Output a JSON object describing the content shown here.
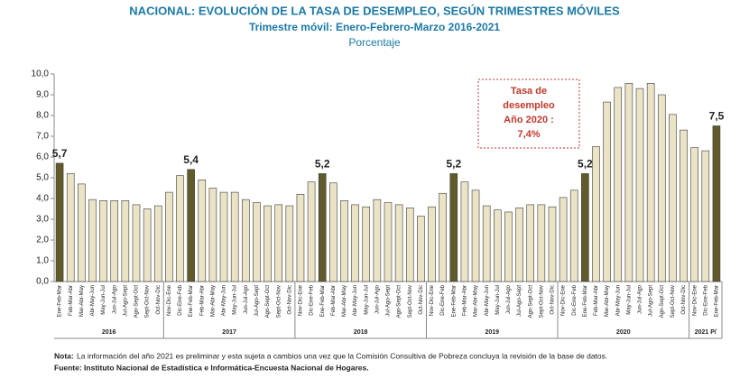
{
  "chart_data": {
    "type": "bar",
    "title": "NACIONAL:  EVOLUCIÓN DE LA TASA DE DESEMPLEO, SEGÚN TRIMESTRES MÓVILES",
    "subtitle": "Trimestre  móvil:  Enero-Febrero-Marzo 2016-2021",
    "y_label": "Porcentaje",
    "color": "#ebe3c6",
    "highlight_color": "#615b2c",
    "ylim": [
      0,
      10
    ],
    "yticks": [
      {
        "value": 0,
        "label": "0,0"
      },
      {
        "value": 1,
        "label": "1,0"
      },
      {
        "value": 2,
        "label": "2,0"
      },
      {
        "value": 3,
        "label": "3,0"
      },
      {
        "value": 4,
        "label": "4,0"
      },
      {
        "value": 5,
        "label": "5,0"
      },
      {
        "value": 6,
        "label": "6,0"
      },
      {
        "value": 7,
        "label": "7,0"
      },
      {
        "value": 8,
        "label": "8,0"
      },
      {
        "value": 9,
        "label": "9,0"
      },
      {
        "value": 10,
        "label": "10,0"
      }
    ],
    "grid": false,
    "groups": [
      {
        "name": "2016",
        "categories": [
          "Ene-Feb-Mar",
          "Feb-Mar-Abr",
          "Mar-Abr-May",
          "Abr-May-Jun",
          "May-Jun-Jul",
          "Jun-Jul-Ago",
          "Jul-Ago-Sept",
          "Ago-Sept-Oct",
          "Sept-Oct-Nov",
          "Oct-Nov-Dic"
        ],
        "values": [
          5.7,
          5.2,
          4.7,
          3.95,
          3.9,
          3.9,
          3.9,
          3.7,
          3.5,
          3.65
        ],
        "value_labels": [
          "5,7",
          null,
          null,
          null,
          null,
          null,
          null,
          null,
          null,
          null
        ]
      },
      {
        "name": "2017",
        "categories": [
          "Nov-Dic-Ene",
          "Dic-Ene-Feb",
          "Ene-Feb-Mar",
          "Feb-Mar-Abr",
          "Mar-Abr-May",
          "Abr-May-Jun",
          "May-Jun-Jul",
          "Jun-Jul-Ago",
          "Jul-Ago-Sept",
          "Ago-Sept-Oct",
          "Sept-Oct-Nov",
          "Oct-Nov-Dic"
        ],
        "values": [
          4.3,
          5.1,
          5.4,
          4.9,
          4.5,
          4.3,
          4.3,
          3.95,
          3.8,
          3.65,
          3.7,
          3.65
        ],
        "value_labels": [
          null,
          null,
          "5,4",
          null,
          null,
          null,
          null,
          null,
          null,
          null,
          null,
          null
        ]
      },
      {
        "name": "2018",
        "categories": [
          "Nov-Dic-Ene",
          "Dic-Ene-Feb",
          "Ene-Feb-Mar",
          "Feb-Mar-Abr",
          "Mar-Abr-May",
          "Abr-May-Jun",
          "May-Jun-Jul",
          "Jun-Jul-Ago",
          "Jul-Ago-Sept",
          "Ago-Sept-Oct",
          "Sept-Oct-Nov",
          "Oct-Nov-Dic"
        ],
        "values": [
          4.2,
          4.8,
          5.2,
          4.75,
          3.9,
          3.7,
          3.6,
          3.95,
          3.8,
          3.7,
          3.55,
          3.15
        ],
        "value_labels": [
          null,
          null,
          "5,2",
          null,
          null,
          null,
          null,
          null,
          null,
          null,
          null,
          null
        ]
      },
      {
        "name": "2019",
        "categories": [
          "Nov-Dic-Ene",
          "Dic-Ene-Feb",
          "Ene-Feb-Mar",
          "Feb-Mar-Abr",
          "Mar-Abr-May",
          "Abr-May-Jun",
          "May-Jun-Jul",
          "Jun-Jul-Ago",
          "Jul-Ago-Sept",
          "Ago-Sept-Oct",
          "Sept-Oct-Nov",
          "Oct-Nov-Dic"
        ],
        "values": [
          3.6,
          4.25,
          5.2,
          4.8,
          4.4,
          3.65,
          3.45,
          3.35,
          3.55,
          3.7,
          3.7,
          3.6
        ],
        "value_labels": [
          null,
          null,
          "5,2",
          null,
          null,
          null,
          null,
          null,
          null,
          null,
          null,
          null
        ]
      },
      {
        "name": "2020",
        "categories": [
          "Nov-Dic-Ene",
          "Dic-Ene-Feb",
          "Ene-Feb-Mar",
          "Feb-Mar-Abr",
          "Mar-Abr-May",
          "Abr-May-Jun",
          "May-Jun-Jul",
          "Jun-Jul-Ago",
          "Jul-Ago-Sept",
          "Ago-Sept-Oct",
          "Sept-Oct-Nov",
          "Oct-Nov-Dic"
        ],
        "values": [
          4.05,
          4.4,
          5.2,
          6.5,
          8.65,
          9.35,
          9.55,
          9.3,
          9.55,
          9.0,
          8.05,
          7.3
        ],
        "value_labels": [
          null,
          null,
          "5,2",
          null,
          null,
          null,
          null,
          null,
          null,
          null,
          null,
          null
        ]
      },
      {
        "name": "2021 P/",
        "categories": [
          "Nov-Dic-Ene",
          "Dic-Ene-Feb",
          "Ene-Feb-Mar"
        ],
        "values": [
          6.45,
          6.3,
          7.5
        ],
        "value_labels": [
          null,
          null,
          "7,5"
        ]
      }
    ],
    "annotation": [
      "Tasa de",
      "desempleo",
      "Año 2020 :",
      "7,4%"
    ],
    "note_label": "Nota:",
    "note": "La información del año 2021 es preliminar y esta sujeta a cambios una vez que la Comisión Consultiva de Pobreza concluya la revisión de la base de datos.",
    "source": "Fuente: Instituto Nacional de Estadística e Informática-Encuesta Nacional de Hogares."
  }
}
